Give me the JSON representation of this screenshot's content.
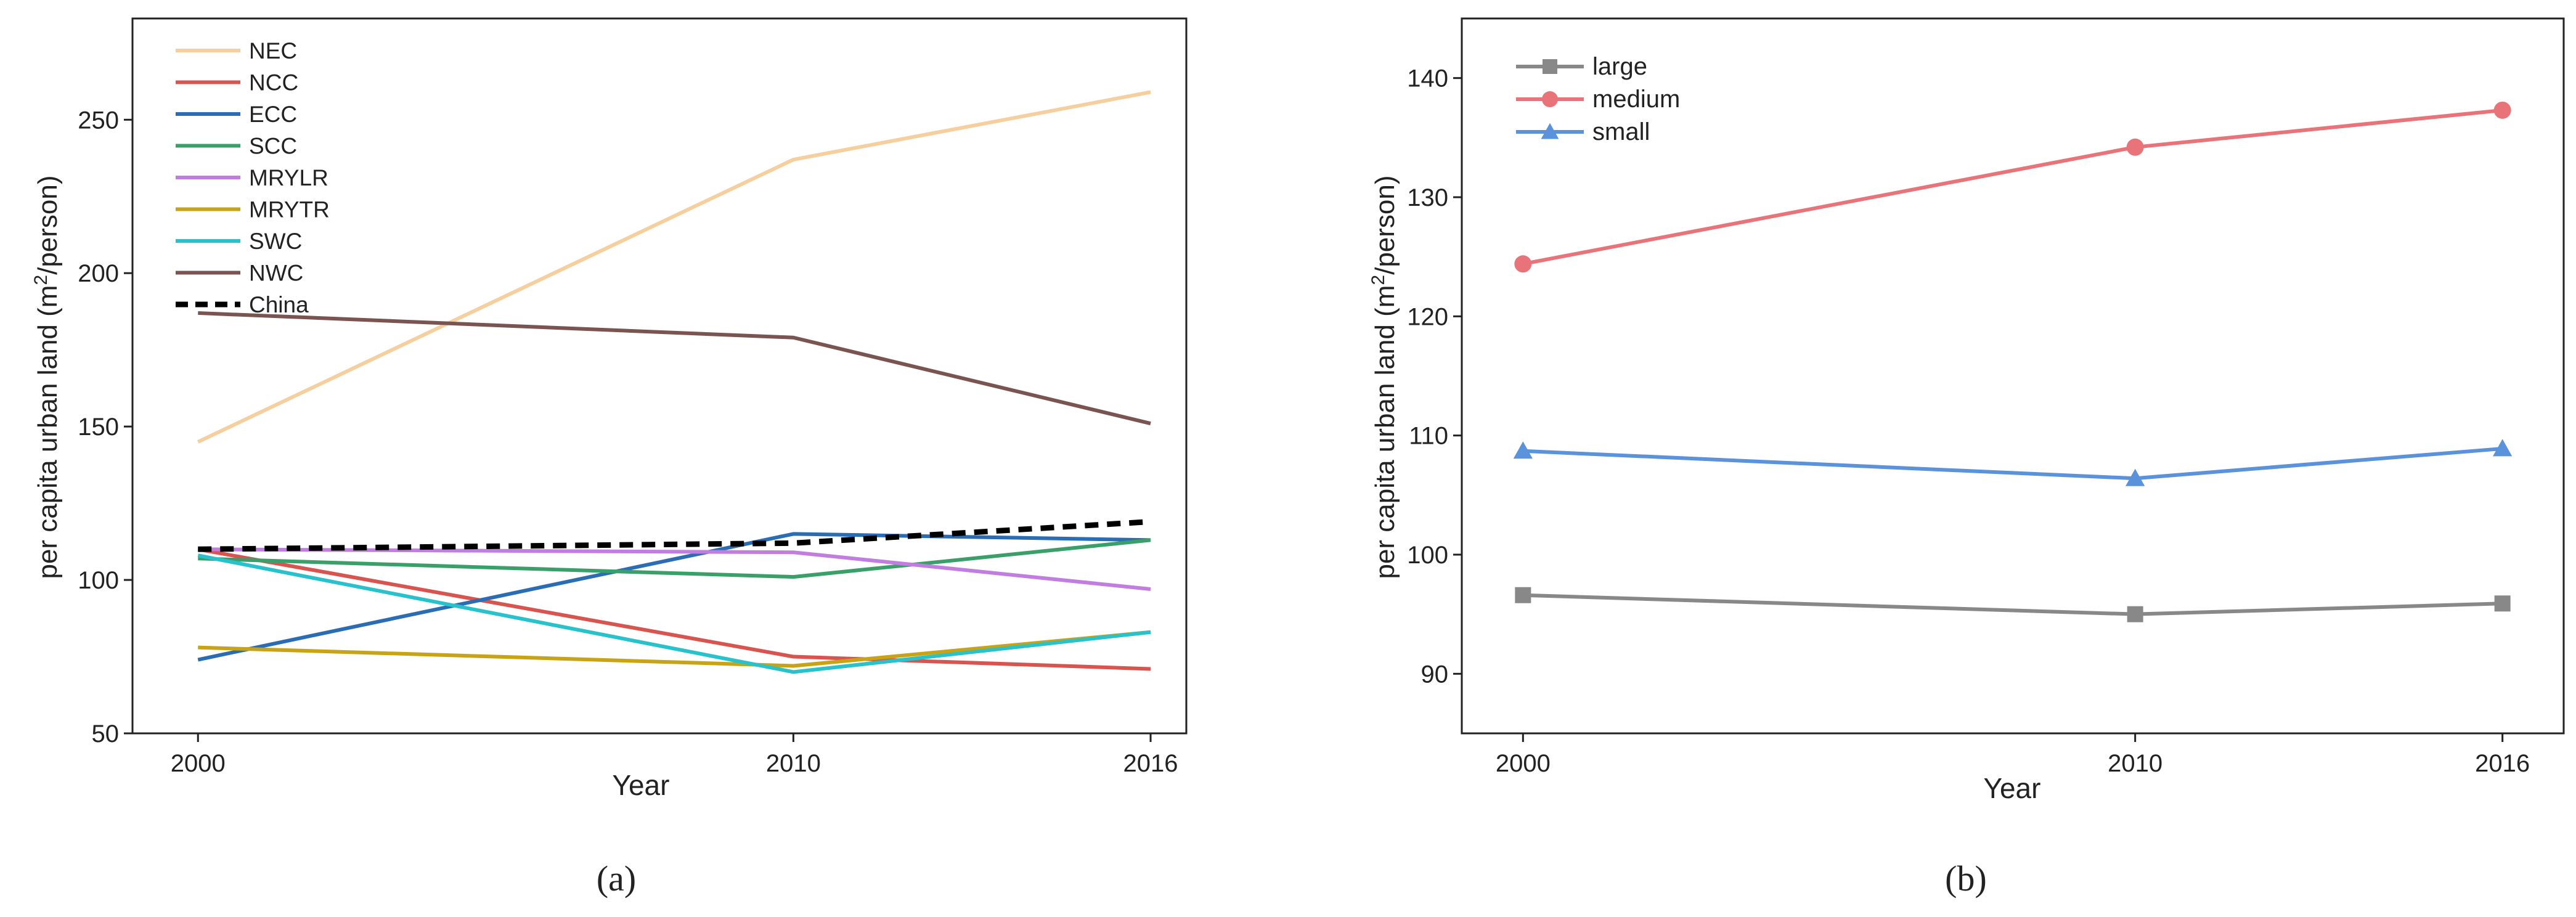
{
  "chart_data": [
    {
      "type": "line",
      "panel_label": "(a)",
      "xlabel": "Year",
      "ylabel": "per capita urban land (m²/person)",
      "x": [
        2000,
        2010,
        2016
      ],
      "xticks": [
        "2000",
        "2010",
        "2016"
      ],
      "xlim": [
        1998.9,
        2016.6
      ],
      "ylim": [
        50,
        283
      ],
      "yticks": [
        50,
        100,
        150,
        200,
        250
      ],
      "legend_position": "top-left",
      "series": [
        {
          "name": "NEC",
          "values": [
            145,
            237,
            259
          ],
          "color": "#f5cf9e",
          "dashed": false
        },
        {
          "name": "NCC",
          "values": [
            110,
            75,
            71
          ],
          "color": "#d9534f",
          "dashed": false
        },
        {
          "name": "ECC",
          "values": [
            74,
            115,
            113
          ],
          "color": "#2a6db5",
          "dashed": false
        },
        {
          "name": "SCC",
          "values": [
            107,
            101,
            113
          ],
          "color": "#3aa06a",
          "dashed": false
        },
        {
          "name": "MRYLR",
          "values": [
            110,
            109,
            97
          ],
          "color": "#c17ee0",
          "dashed": false
        },
        {
          "name": "MRYTR",
          "values": [
            78,
            72,
            83
          ],
          "color": "#c8a415",
          "dashed": false
        },
        {
          "name": "SWC",
          "values": [
            108,
            70,
            83
          ],
          "color": "#27c2cc",
          "dashed": false
        },
        {
          "name": "NWC",
          "values": [
            187,
            179,
            151
          ],
          "color": "#7a5451",
          "dashed": false
        },
        {
          "name": "China",
          "values": [
            110,
            112,
            119
          ],
          "color": "#000000",
          "dashed": true
        }
      ]
    },
    {
      "type": "line",
      "panel_label": "(b)",
      "xlabel": "Year",
      "ylabel": "per capita urban land (m²/person)",
      "x": [
        2000,
        2010,
        2016
      ],
      "xticks": [
        "2000",
        "2010",
        "2016"
      ],
      "xlim": [
        1999.0,
        2017.0
      ],
      "ylim": [
        85,
        145
      ],
      "yticks": [
        90,
        100,
        110,
        120,
        130,
        140
      ],
      "legend_position": "top-left",
      "series": [
        {
          "name": "large",
          "values": [
            96.6,
            95.0,
            95.9
          ],
          "color": "#888888",
          "marker": "square"
        },
        {
          "name": "medium",
          "values": [
            124.4,
            134.2,
            137.3
          ],
          "color": "#e8747a",
          "marker": "circle"
        },
        {
          "name": "small",
          "values": [
            108.7,
            106.4,
            108.9
          ],
          "color": "#5a92db",
          "marker": "triangle"
        }
      ]
    }
  ]
}
